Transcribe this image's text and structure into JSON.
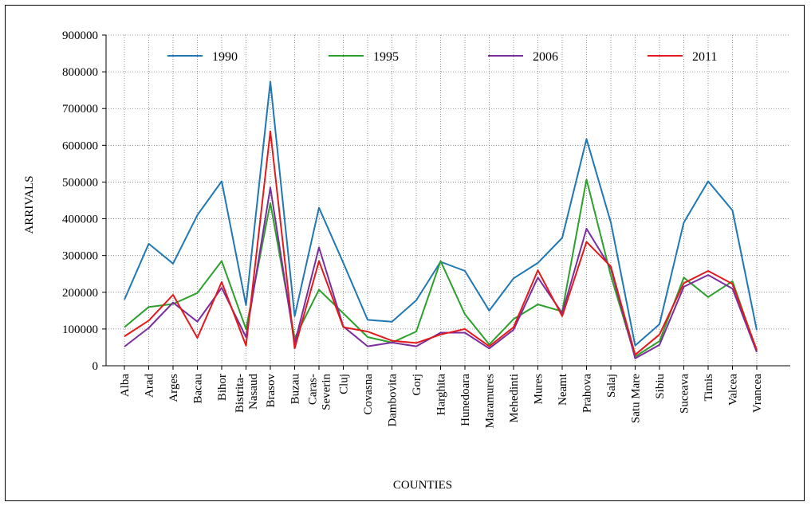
{
  "chart_data": {
    "type": "line",
    "title": "",
    "xlabel": "COUNTIES",
    "ylabel": "ARRIVALS",
    "ylim": [
      0,
      900000
    ],
    "yticks": [
      0,
      100000,
      200000,
      300000,
      400000,
      500000,
      600000,
      700000,
      800000,
      900000
    ],
    "yticklabels": [
      "0",
      "100000",
      "200000",
      "300000",
      "400000",
      "500000",
      "600000",
      "700000",
      "800000",
      "900000"
    ],
    "grid": "dotted vertical and horizontal",
    "legend_position": "top",
    "categories": [
      "Alba",
      "Arad",
      "Arges",
      "Bacau",
      "Bihor",
      "Bistrita-Nasaud",
      "Brasov",
      "Buzau",
      "Caras-Severin",
      "Cluj",
      "Covasna",
      "Dambovita",
      "Gorj",
      "Harghita",
      "Hunedoara",
      "Maramures",
      "Mehedinti",
      "Mures",
      "Neamt",
      "Prahova",
      "Salaj",
      "Satu Mare",
      "Sibiu",
      "Suceava",
      "Timis",
      "Valcea",
      "Vrancea"
    ],
    "category_lines": [
      [
        "Alba"
      ],
      [
        "Arad"
      ],
      [
        "Arges"
      ],
      [
        "Bacau"
      ],
      [
        "Bihor"
      ],
      [
        "Bistrita-",
        "Nasaud"
      ],
      [
        "Brasov"
      ],
      [
        "Buzau"
      ],
      [
        "Caras-",
        "Severin"
      ],
      [
        "Cluj"
      ],
      [
        "Covasna"
      ],
      [
        "Dambovita"
      ],
      [
        "Gorj"
      ],
      [
        "Harghita"
      ],
      [
        "Hunedoara"
      ],
      [
        "Maramures"
      ],
      [
        "Mehedinti"
      ],
      [
        "Mures"
      ],
      [
        "Neamt"
      ],
      [
        "Prahova"
      ],
      [
        "Salaj"
      ],
      [
        "Satu Mare"
      ],
      [
        "Sibiu"
      ],
      [
        "Suceava"
      ],
      [
        "Timis"
      ],
      [
        "Valcea"
      ],
      [
        "Vrancea"
      ]
    ],
    "series": [
      {
        "name": "1990",
        "color": "#1f77b4",
        "values": [
          180000,
          332000,
          278000,
          410000,
          502000,
          165000,
          773000,
          135000,
          430000,
          280000,
          125000,
          120000,
          178000,
          283000,
          258000,
          150000,
          238000,
          280000,
          348000,
          617000,
          390000,
          55000,
          113000,
          390000,
          502000,
          423000,
          97000
        ]
      },
      {
        "name": "1995",
        "color": "#2ca02c",
        "values": [
          105000,
          160000,
          168000,
          198000,
          285000,
          100000,
          443000,
          75000,
          207000,
          143000,
          78000,
          63000,
          93000,
          285000,
          140000,
          58000,
          127000,
          167000,
          148000,
          507000,
          245000,
          25000,
          67000,
          240000,
          187000,
          230000,
          40000
        ]
      },
      {
        "name": "2006",
        "color": "#7b2d9b",
        "values": [
          52000,
          103000,
          172000,
          120000,
          212000,
          78000,
          485000,
          60000,
          322000,
          107000,
          53000,
          63000,
          53000,
          90000,
          90000,
          47000,
          98000,
          240000,
          143000,
          373000,
          265000,
          20000,
          57000,
          215000,
          247000,
          210000,
          37000
        ]
      },
      {
        "name": "2011",
        "color": "#e31a1c",
        "values": [
          80000,
          123000,
          193000,
          76000,
          228000,
          55000,
          638000,
          47000,
          285000,
          105000,
          93000,
          68000,
          62000,
          85000,
          100000,
          53000,
          105000,
          260000,
          135000,
          337000,
          270000,
          30000,
          85000,
          225000,
          258000,
          223000,
          43000
        ]
      }
    ]
  }
}
